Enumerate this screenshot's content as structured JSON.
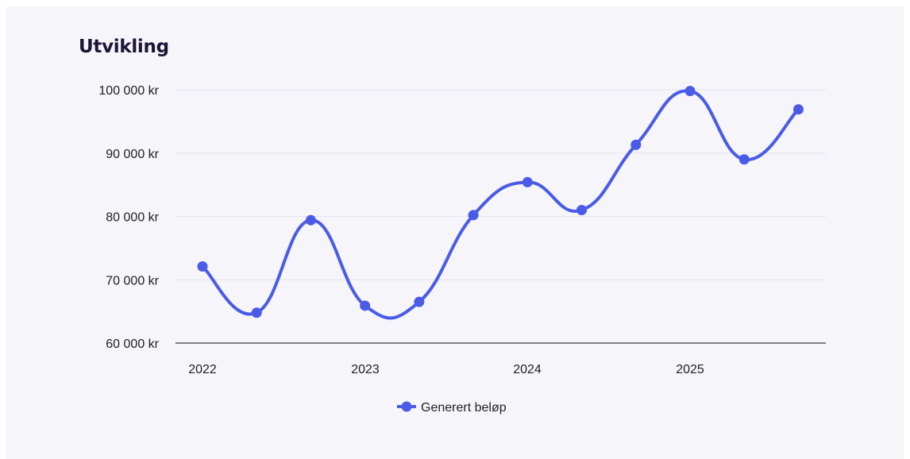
{
  "chart_data": {
    "type": "line",
    "title": "Utvikling",
    "xlabel": "",
    "ylabel": "",
    "x_ticks": [
      "2022",
      "2023",
      "2024",
      "2025"
    ],
    "y_ticks": [
      "60 000 kr",
      "70 000 kr",
      "80 000 kr",
      "90 000 kr",
      "100 000 kr"
    ],
    "ylim": [
      60000,
      100000
    ],
    "grid": "horizontal",
    "legend_position": "bottom-center",
    "color": "#4a5be8",
    "series": [
      {
        "name": "Generert beløp",
        "x": [
          "2022-01",
          "2022-05",
          "2022-09",
          "2023-01",
          "2023-05",
          "2023-09",
          "2024-01",
          "2024-05",
          "2024-09",
          "2025-01",
          "2025-05",
          "2025-09"
        ],
        "values": [
          72100,
          64800,
          79400,
          65900,
          66500,
          80200,
          85400,
          81000,
          91300,
          99800,
          89000,
          96900
        ]
      }
    ]
  }
}
